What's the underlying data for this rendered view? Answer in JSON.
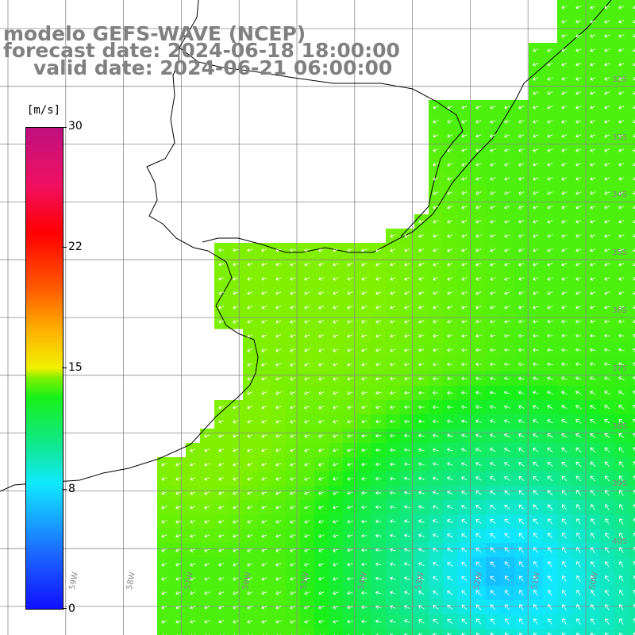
{
  "title": {
    "line1": "modelo GEFS-WAVE (NCEP)",
    "line2": "forecast date: 2024-06-18 18:00:00",
    "line3": "valid date: 2024-06-21 06:00:00"
  },
  "colorbar": {
    "unit": "[m/s]",
    "ticks": [
      {
        "label": "30",
        "value": 30
      },
      {
        "label": "22",
        "value": 22
      },
      {
        "label": "15",
        "value": 15
      },
      {
        "label": "8",
        "value": 8
      },
      {
        "label": "0",
        "value": 0
      }
    ]
  },
  "lat_labels": [
    "32S",
    "33S",
    "34S",
    "35S",
    "36S",
    "37S",
    "38S",
    "39S",
    "40S"
  ],
  "lon_labels": [
    "59W",
    "58W",
    "57W",
    "56W",
    "55W",
    "54W",
    "53W",
    "52W",
    "51W",
    "50W"
  ],
  "colors": {
    "land": "#ffffff",
    "grid": "#8a8a8a",
    "coast": "#000000",
    "arrow": "#ffffff",
    "text": "#808080"
  }
}
